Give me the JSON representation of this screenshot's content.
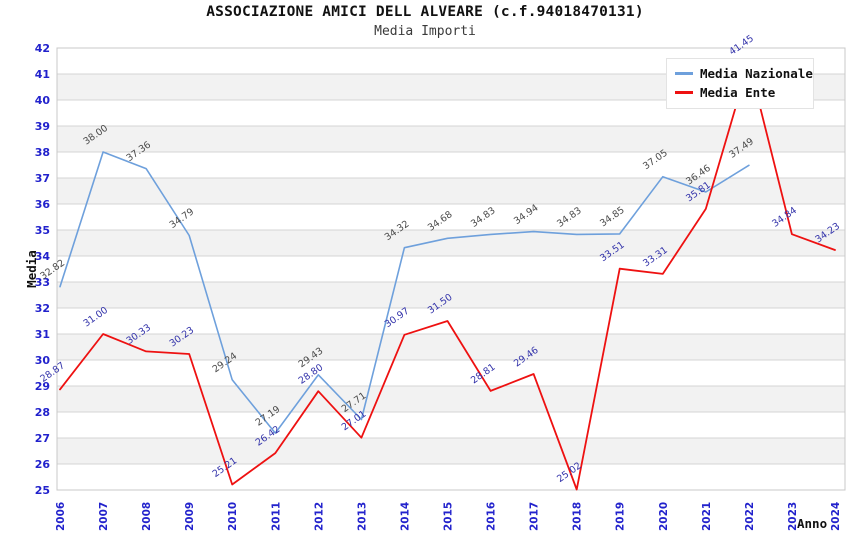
{
  "header": {
    "title": "ASSOCIAZIONE AMICI DELL ALVEARE (c.f.94018470131)",
    "subtitle": "Media Importi"
  },
  "chart_data": {
    "type": "line",
    "title": "ASSOCIAZIONE AMICI DELL ALVEARE (c.f.94018470131)",
    "subtitle": "Media Importi",
    "xlabel": "Anno",
    "ylabel": "Media",
    "ylim": [
      25,
      42
    ],
    "ytick_step": 1,
    "grid": true,
    "band_color": "#f2f2f2",
    "grid_color": "#d4d4d4",
    "border_color": "#c8c8c8",
    "axis_text_color": "#2222cc",
    "legend_position": "top-right",
    "x": [
      2006,
      2007,
      2008,
      2009,
      2010,
      2011,
      2012,
      2013,
      2014,
      2015,
      2016,
      2017,
      2018,
      2019,
      2020,
      2021,
      2022,
      2023,
      2024
    ],
    "series": [
      {
        "name": "Media Nazionale",
        "color": "#6ea0dc",
        "label_color": "#4a4a4a",
        "values": [
          32.82,
          38.0,
          37.36,
          34.79,
          29.24,
          27.19,
          29.43,
          27.71,
          34.32,
          34.68,
          34.83,
          34.94,
          34.83,
          34.85,
          37.05,
          36.46,
          37.49,
          null,
          null
        ]
      },
      {
        "name": "Media Ente",
        "color": "#ee1111",
        "label_color": "#3333aa",
        "values": [
          28.87,
          31.0,
          30.33,
          30.23,
          25.21,
          26.42,
          28.8,
          27.01,
          30.97,
          31.5,
          28.81,
          29.46,
          25.02,
          33.51,
          33.31,
          35.81,
          41.45,
          34.84,
          34.23
        ]
      }
    ]
  }
}
